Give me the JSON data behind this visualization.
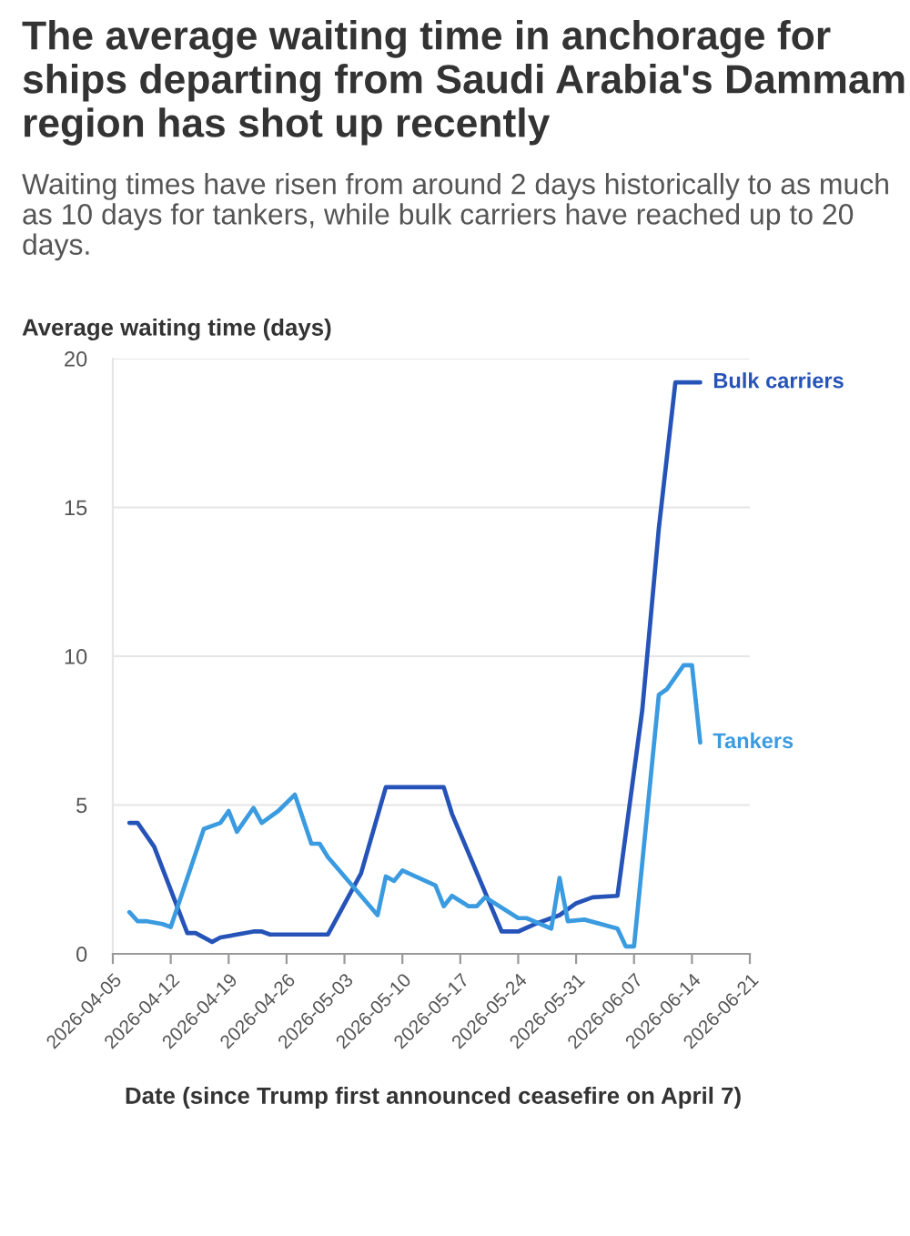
{
  "chart_data": {
    "type": "line",
    "title": "The average waiting time in anchorage for ships departing from Saudi Arabia's Dammam region has shot up recently",
    "subtitle": "Waiting times have risen from around 2 days historically to as much as 10 days for tankers, while bulk carriers have reached up to 20 days.",
    "ylabel": "Average waiting time (days)",
    "xlabel": "Date (since Trump first announced ceasefire on April 7)",
    "series": [
      {
        "name": "Bulk carriers",
        "color": "#2553b8",
        "x": [
          "2026-04-07",
          "2026-04-08",
          "2026-04-10",
          "2026-04-14",
          "2026-04-15",
          "2026-04-17",
          "2026-04-18",
          "2026-04-22",
          "2026-04-23",
          "2026-04-24",
          "2026-05-01",
          "2026-05-05",
          "2026-05-08",
          "2026-05-15",
          "2026-05-16",
          "2026-05-22",
          "2026-05-24",
          "2026-05-26",
          "2026-05-29",
          "2026-05-31",
          "2026-06-02",
          "2026-06-05",
          "2026-06-08",
          "2026-06-10",
          "2026-06-12",
          "2026-06-15"
        ],
        "values": [
          4.4,
          4.4,
          3.6,
          0.7,
          0.7,
          0.4,
          0.55,
          0.75,
          0.75,
          0.65,
          0.65,
          2.7,
          5.6,
          5.6,
          4.7,
          0.75,
          0.75,
          1.0,
          1.3,
          1.7,
          1.9,
          1.95,
          8.2,
          14.3,
          19.2,
          19.2
        ]
      },
      {
        "name": "Tankers",
        "color": "#3a9be0",
        "x": [
          "2026-04-07",
          "2026-04-08",
          "2026-04-09",
          "2026-04-11",
          "2026-04-12",
          "2026-04-16",
          "2026-04-18",
          "2026-04-19",
          "2026-04-20",
          "2026-04-22",
          "2026-04-23",
          "2026-04-25",
          "2026-04-27",
          "2026-04-29",
          "2026-04-30",
          "2026-05-01",
          "2026-05-07",
          "2026-05-08",
          "2026-05-09",
          "2026-05-10",
          "2026-05-14",
          "2026-05-15",
          "2026-05-16",
          "2026-05-18",
          "2026-05-19",
          "2026-05-20",
          "2026-05-24",
          "2026-05-25",
          "2026-05-28",
          "2026-05-29",
          "2026-05-30",
          "2026-06-01",
          "2026-06-05",
          "2026-06-06",
          "2026-06-07",
          "2026-06-10",
          "2026-06-11",
          "2026-06-13",
          "2026-06-14",
          "2026-06-15"
        ],
        "values": [
          1.4,
          1.1,
          1.1,
          1.0,
          0.9,
          4.2,
          4.4,
          4.8,
          4.1,
          4.9,
          4.4,
          4.8,
          5.35,
          3.7,
          3.7,
          3.25,
          1.3,
          2.6,
          2.45,
          2.8,
          2.3,
          1.6,
          1.95,
          1.6,
          1.6,
          1.9,
          1.2,
          1.2,
          0.85,
          2.55,
          1.1,
          1.15,
          0.85,
          0.25,
          0.25,
          8.7,
          8.9,
          9.7,
          9.7,
          7.1
        ]
      }
    ],
    "xlim": [
      "2026-04-05",
      "2026-06-21"
    ],
    "xticks": [
      "2026-04-05",
      "2026-04-12",
      "2026-04-19",
      "2026-04-26",
      "2026-05-03",
      "2026-05-10",
      "2026-05-17",
      "2026-05-24",
      "2026-05-31",
      "2026-06-07",
      "2026-06-14",
      "2026-06-21"
    ],
    "ylim": [
      0,
      20
    ],
    "yticks": [
      0,
      5,
      10,
      15,
      20
    ],
    "grid": "y"
  }
}
